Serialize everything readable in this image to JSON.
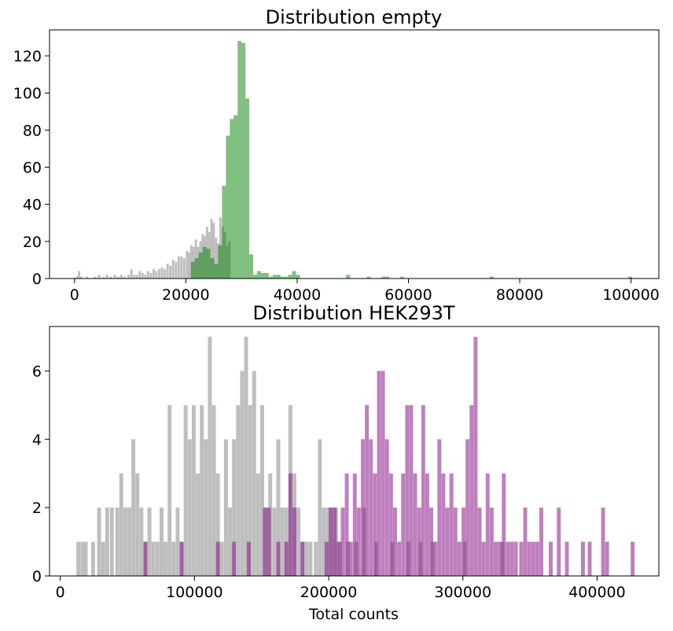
{
  "chart_data": [
    {
      "type": "histogram",
      "title": "Distribution empty",
      "xlabel": "",
      "ylabel": "",
      "xlim": [
        -4500,
        105000
      ],
      "ylim": [
        0,
        134
      ],
      "grid": false,
      "legend": "none",
      "x_ticks": [
        0,
        20000,
        40000,
        60000,
        80000,
        100000
      ],
      "y_ticks": [
        0,
        20,
        40,
        60,
        80,
        100,
        120
      ],
      "series": [
        {
          "color": "#bebebe",
          "opacity": 1,
          "bin_width": 420,
          "bins": [
            [
              200,
              1
            ],
            [
              600,
              4
            ],
            [
              1000,
              1
            ],
            [
              2000,
              1
            ],
            [
              3500,
              1
            ],
            [
              4200,
              2
            ],
            [
              5000,
              1
            ],
            [
              5600,
              2
            ],
            [
              6300,
              1
            ],
            [
              7000,
              2
            ],
            [
              7600,
              1
            ],
            [
              8200,
              2
            ],
            [
              8800,
              1
            ],
            [
              9500,
              2
            ],
            [
              10000,
              5
            ],
            [
              10500,
              2
            ],
            [
              11000,
              2
            ],
            [
              11500,
              4
            ],
            [
              12000,
              3
            ],
            [
              12500,
              2
            ],
            [
              13000,
              4
            ],
            [
              13500,
              3
            ],
            [
              14000,
              5
            ],
            [
              14500,
              4
            ],
            [
              15000,
              5
            ],
            [
              15500,
              6
            ],
            [
              16000,
              5
            ],
            [
              16500,
              8
            ],
            [
              17000,
              7
            ],
            [
              17500,
              10
            ],
            [
              18000,
              9
            ],
            [
              18500,
              12
            ],
            [
              19000,
              12
            ],
            [
              19500,
              11
            ],
            [
              20000,
              15
            ],
            [
              20400,
              14
            ],
            [
              20800,
              18
            ],
            [
              21200,
              17
            ],
            [
              21600,
              21
            ],
            [
              22000,
              17
            ],
            [
              22400,
              20
            ],
            [
              22800,
              24
            ],
            [
              23200,
              23
            ],
            [
              23600,
              28
            ],
            [
              24000,
              25
            ],
            [
              24400,
              32
            ],
            [
              24800,
              30
            ],
            [
              25200,
              22
            ],
            [
              25600,
              19
            ],
            [
              26000,
              33
            ],
            [
              26400,
              28
            ],
            [
              26800,
              25
            ],
            [
              27200,
              18
            ],
            [
              27600,
              20
            ]
          ]
        },
        {
          "color": "#008000",
          "opacity": 0.5,
          "bin_width": 700,
          "bins": [
            [
              20900,
              9
            ],
            [
              21600,
              11
            ],
            [
              22300,
              14
            ],
            [
              23000,
              17
            ],
            [
              23700,
              16
            ],
            [
              24400,
              11
            ],
            [
              25100,
              8
            ],
            [
              25800,
              18
            ],
            [
              26500,
              50
            ],
            [
              27200,
              77
            ],
            [
              27900,
              86
            ],
            [
              28600,
              88
            ],
            [
              29300,
              128
            ],
            [
              30000,
              127
            ],
            [
              30700,
              97
            ],
            [
              31400,
              13
            ],
            [
              32100,
              2
            ],
            [
              32800,
              4
            ],
            [
              33500,
              3
            ],
            [
              34200,
              3
            ],
            [
              34900,
              1
            ],
            [
              35600,
              2
            ],
            [
              36300,
              2
            ],
            [
              37000,
              1
            ],
            [
              37700,
              1
            ],
            [
              38400,
              2
            ],
            [
              39100,
              4
            ],
            [
              39800,
              2
            ],
            [
              48800,
              2
            ],
            [
              52500,
              1
            ],
            [
              55200,
              1
            ],
            [
              55900,
              1
            ],
            [
              58500,
              1
            ],
            [
              74600,
              1
            ],
            [
              99500,
              1
            ]
          ]
        }
      ]
    },
    {
      "type": "histogram",
      "title": "Distribution HEK293T",
      "xlabel": "Total counts",
      "ylabel": "",
      "xlim": [
        -8000,
        446000
      ],
      "ylim": [
        0,
        7.3
      ],
      "grid": false,
      "legend": "none",
      "x_ticks": [
        0,
        100000,
        200000,
        300000,
        400000
      ],
      "y_ticks": [
        0,
        2,
        4,
        6
      ],
      "series": [
        {
          "color": "#bebebe",
          "opacity": 1,
          "bin_width": 2900,
          "bins": [
            [
              12000,
              1
            ],
            [
              15000,
              1
            ],
            [
              17500,
              1
            ],
            [
              23000,
              1
            ],
            [
              27500,
              2
            ],
            [
              30500,
              1
            ],
            [
              33500,
              2
            ],
            [
              37000,
              2
            ],
            [
              41000,
              2
            ],
            [
              44000,
              3
            ],
            [
              47000,
              2
            ],
            [
              50000,
              2
            ],
            [
              53000,
              4
            ],
            [
              56000,
              3
            ],
            [
              59000,
              2
            ],
            [
              62000,
              1
            ],
            [
              65000,
              2
            ],
            [
              68000,
              1
            ],
            [
              71000,
              1
            ],
            [
              74000,
              2
            ],
            [
              77000,
              1
            ],
            [
              80000,
              5
            ],
            [
              83000,
              1
            ],
            [
              86000,
              2
            ],
            [
              89000,
              1
            ],
            [
              92000,
              5
            ],
            [
              95000,
              4
            ],
            [
              98000,
              5
            ],
            [
              101000,
              3
            ],
            [
              104000,
              5
            ],
            [
              107000,
              4
            ],
            [
              110000,
              7
            ],
            [
              113000,
              5
            ],
            [
              116000,
              3
            ],
            [
              119000,
              1
            ],
            [
              122000,
              4
            ],
            [
              125000,
              2
            ],
            [
              128000,
              4
            ],
            [
              131000,
              5
            ],
            [
              134000,
              6
            ],
            [
              137000,
              7
            ],
            [
              140000,
              5
            ],
            [
              143000,
              6
            ],
            [
              146000,
              3
            ],
            [
              149000,
              5
            ],
            [
              152000,
              2
            ],
            [
              155000,
              3
            ],
            [
              158000,
              2
            ],
            [
              161000,
              4
            ],
            [
              164000,
              2
            ],
            [
              167000,
              2
            ],
            [
              170000,
              5
            ],
            [
              173000,
              3
            ],
            [
              176000,
              2
            ],
            [
              179000,
              1
            ],
            [
              182000,
              1
            ],
            [
              185000,
              1
            ],
            [
              189000,
              1
            ],
            [
              192000,
              4
            ],
            [
              195000,
              2
            ],
            [
              198000,
              2
            ],
            [
              201000,
              2
            ],
            [
              204000,
              2
            ],
            [
              207000,
              1
            ],
            [
              213000,
              1
            ],
            [
              219000,
              1
            ],
            [
              225000,
              2
            ],
            [
              234000,
              1
            ],
            [
              246000,
              1
            ],
            [
              258000,
              1
            ],
            [
              267000,
              1
            ],
            [
              276000,
              1
            ],
            [
              300000,
              1
            ],
            [
              328000,
              1
            ]
          ]
        },
        {
          "color": "#800080",
          "opacity": 0.5,
          "bin_width": 2900,
          "bins": [
            [
              62000,
              1
            ],
            [
              89000,
              1
            ],
            [
              116000,
              1
            ],
            [
              128000,
              1
            ],
            [
              139000,
              1
            ],
            [
              151000,
              2
            ],
            [
              154000,
              2
            ],
            [
              161000,
              1
            ],
            [
              167000,
              1
            ],
            [
              170000,
              3
            ],
            [
              173000,
              2
            ],
            [
              179000,
              1
            ],
            [
              197000,
              1
            ],
            [
              200000,
              2
            ],
            [
              203000,
              2
            ],
            [
              206000,
              1
            ],
            [
              209000,
              2
            ],
            [
              212000,
              3
            ],
            [
              215000,
              1
            ],
            [
              218000,
              3
            ],
            [
              221000,
              2
            ],
            [
              224000,
              4
            ],
            [
              227000,
              5
            ],
            [
              230000,
              4
            ],
            [
              233000,
              3
            ],
            [
              236000,
              6
            ],
            [
              239000,
              6
            ],
            [
              242000,
              4
            ],
            [
              245000,
              3
            ],
            [
              248000,
              2
            ],
            [
              251000,
              1
            ],
            [
              254000,
              3
            ],
            [
              257000,
              5
            ],
            [
              260000,
              5
            ],
            [
              263000,
              3
            ],
            [
              266000,
              2
            ],
            [
              269000,
              5
            ],
            [
              272000,
              3
            ],
            [
              275000,
              2
            ],
            [
              278000,
              1
            ],
            [
              281000,
              4
            ],
            [
              284000,
              3
            ],
            [
              287000,
              2
            ],
            [
              290000,
              3
            ],
            [
              293000,
              2
            ],
            [
              296000,
              1
            ],
            [
              299000,
              2
            ],
            [
              302000,
              4
            ],
            [
              305000,
              5
            ],
            [
              308000,
              7
            ],
            [
              311000,
              2
            ],
            [
              314000,
              1
            ],
            [
              317000,
              3
            ],
            [
              320000,
              2
            ],
            [
              323000,
              1
            ],
            [
              326000,
              1
            ],
            [
              329000,
              3
            ],
            [
              332000,
              1
            ],
            [
              335000,
              1
            ],
            [
              338000,
              1
            ],
            [
              342000,
              1
            ],
            [
              345000,
              2
            ],
            [
              348000,
              1
            ],
            [
              351000,
              1
            ],
            [
              354000,
              1
            ],
            [
              357000,
              2
            ],
            [
              364000,
              1
            ],
            [
              370000,
              2
            ],
            [
              376000,
              1
            ],
            [
              388000,
              1
            ],
            [
              393000,
              1
            ],
            [
              403000,
              2
            ],
            [
              406000,
              1
            ],
            [
              425000,
              1
            ]
          ]
        }
      ]
    }
  ]
}
